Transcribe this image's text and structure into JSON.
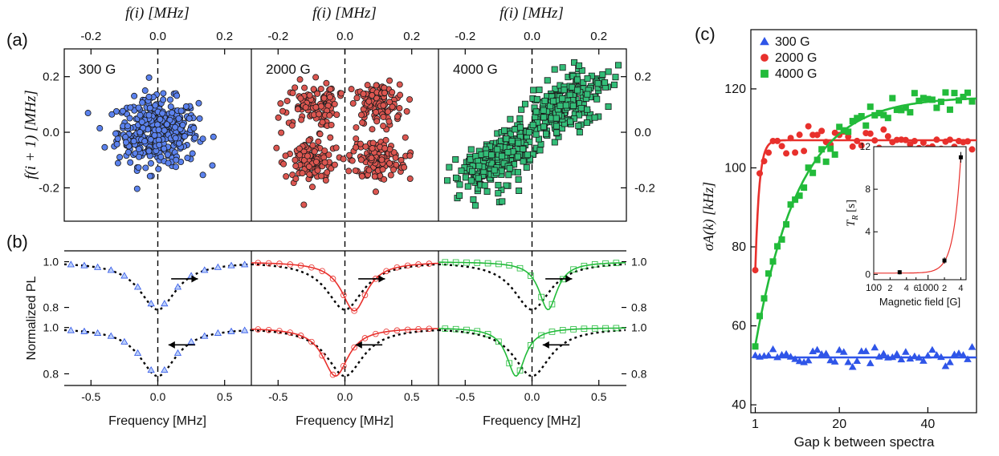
{
  "figure": {
    "panel_a_label": "(a)",
    "panel_b_label": "(b)",
    "panel_c_label": "(c)"
  },
  "colors": {
    "blue": "#2f55e8",
    "red": "#e8302c",
    "green": "#22bb3a",
    "blue_fill": "#5b82ee",
    "red_fill": "#dc5650",
    "green_fill": "#33bd78"
  },
  "chart_data": [
    {
      "id": "a",
      "type": "scatter",
      "top_axis_label": "f(i) [MHz]",
      "left_axis_label": "f(i + 1) [MHz]",
      "x_ticks": [
        "-0.2",
        "0.0",
        "0.2"
      ],
      "y_ticks": [
        "0.2",
        "0.0",
        "-0.2"
      ],
      "xlim": [
        -0.28,
        0.28
      ],
      "ylim": [
        -0.32,
        0.3
      ],
      "series": [
        {
          "name": "300 G",
          "marker": "circle",
          "cluster_centers": [
            [
              0.0,
              0.0
            ]
          ],
          "spread": 0.06,
          "points": 420
        },
        {
          "name": "2000 G",
          "marker": "circle",
          "cluster_centers": [
            [
              -0.1,
              0.1
            ],
            [
              0.1,
              0.1
            ],
            [
              -0.1,
              -0.1
            ],
            [
              0.1,
              -0.1
            ]
          ],
          "spread": 0.04,
          "points": 440
        },
        {
          "name": "4000 G",
          "marker": "square",
          "cluster_centers": [
            [
              -0.1,
              -0.1
            ],
            [
              0.1,
              0.1
            ]
          ],
          "spread": 0.055,
          "points": 500
        }
      ]
    },
    {
      "id": "b",
      "type": "line",
      "x_axis_label": "Frequency [MHz]",
      "y_axis_label": "Normalized PL",
      "x_ticks": [
        "-0.5",
        "0.0",
        "0.5"
      ],
      "y_ticks": [
        "1.0",
        "0.8"
      ],
      "xlim": [
        -0.7,
        0.7
      ],
      "ylim": [
        0.76,
        1.03
      ],
      "reference_curve": {
        "center": 0.0,
        "width": 0.2,
        "depth": 0.21
      },
      "series": [
        {
          "name": "300 G",
          "marker": "triangle",
          "sweep_up": {
            "center": 0.0,
            "width": 0.2,
            "depth": 0.2
          },
          "sweep_down": {
            "center": 0.0,
            "width": 0.2,
            "depth": 0.2
          }
        },
        {
          "name": "2000 G",
          "marker": "circle",
          "sweep_up": {
            "center": 0.07,
            "width": 0.14,
            "depth": 0.215
          },
          "sweep_down": {
            "center": -0.07,
            "width": 0.14,
            "depth": 0.21
          }
        },
        {
          "name": "4000 G",
          "marker": "square",
          "sweep_up": {
            "center": 0.12,
            "width": 0.1,
            "depth": 0.21
          },
          "sweep_down": {
            "center": -0.12,
            "width": 0.1,
            "depth": 0.21
          }
        }
      ]
    },
    {
      "id": "c",
      "type": "scatter",
      "xlabel": "Gap k between spectra",
      "ylabel": "σA(k) [kHz]",
      "x_ticks": [
        "1",
        "20",
        "40"
      ],
      "y_ticks": [
        "40",
        "60",
        "80",
        "100",
        "120"
      ],
      "xlim": [
        0,
        51
      ],
      "ylim": [
        38,
        135
      ],
      "legend": [
        "300 G",
        "2000 G",
        "4000 G"
      ],
      "legend_position": "top-left",
      "series": [
        {
          "name": "300 G",
          "marker": "triangle",
          "fit": {
            "plateau": 52,
            "start": 52,
            "tau": 1
          }
        },
        {
          "name": "2000 G",
          "marker": "circle",
          "fit": {
            "plateau": 107,
            "start": 74,
            "tau": 0.9
          }
        },
        {
          "name": "4000 G",
          "marker": "square",
          "fit": {
            "plateau": 118,
            "start": 55,
            "tau": 10
          }
        }
      ],
      "inset": {
        "xlabel": "Magnetic field [G]",
        "ylabel": "T_R [s]",
        "x_scale": "log",
        "x_tick_labels": [
          "100",
          "2",
          "4",
          "6",
          "1000",
          "2",
          "4"
        ],
        "y_ticks": [
          "0",
          "4",
          "8",
          "12"
        ],
        "points": [
          [
            300,
            0.2
          ],
          [
            2000,
            1.3
          ],
          [
            4000,
            11
          ]
        ],
        "y_errors": [
          0.2,
          0.3,
          0.5
        ]
      }
    }
  ]
}
